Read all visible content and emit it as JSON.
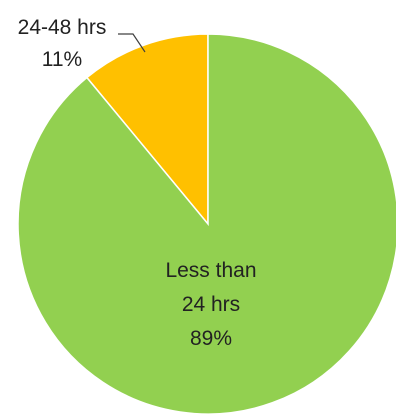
{
  "chart_data": {
    "type": "pie",
    "title": "",
    "legend": "none",
    "slices": [
      {
        "category_lines": [
          "24-48 hrs"
        ],
        "percent_label": "11%",
        "value": 11,
        "color": "#FFC000"
      },
      {
        "category_lines": [
          "Less than",
          "24 hrs"
        ],
        "percent_label": "89%",
        "value": 89,
        "color": "#92D050"
      }
    ]
  }
}
